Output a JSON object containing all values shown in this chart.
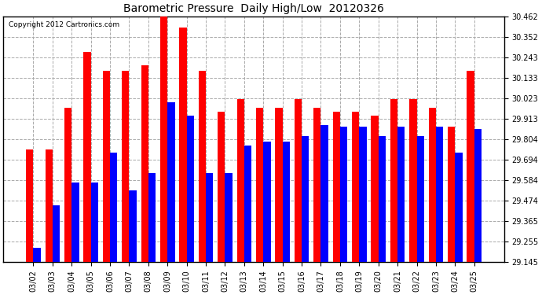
{
  "title": "Barometric Pressure  Daily High/Low  20120326",
  "copyright": "Copyright 2012 Cartronics.com",
  "dates": [
    "03/02",
    "03/03",
    "03/04",
    "03/05",
    "03/06",
    "03/07",
    "03/08",
    "03/09",
    "03/10",
    "03/11",
    "03/12",
    "03/13",
    "03/14",
    "03/15",
    "03/16",
    "03/17",
    "03/18",
    "03/19",
    "03/20",
    "03/21",
    "03/22",
    "03/23",
    "03/24",
    "03/25"
  ],
  "highs": [
    29.75,
    29.75,
    29.97,
    30.27,
    30.17,
    30.17,
    30.2,
    30.46,
    30.4,
    30.17,
    29.95,
    30.02,
    29.97,
    29.97,
    30.02,
    29.97,
    29.95,
    29.95,
    29.93,
    30.02,
    30.02,
    29.97,
    29.87,
    30.17
  ],
  "lows": [
    29.22,
    29.45,
    29.57,
    29.57,
    29.73,
    29.53,
    29.62,
    30.0,
    29.93,
    29.62,
    29.62,
    29.77,
    29.79,
    29.79,
    29.82,
    29.88,
    29.87,
    29.87,
    29.82,
    29.87,
    29.82,
    29.87,
    29.73,
    29.86
  ],
  "high_color": "#ff0000",
  "low_color": "#0000ff",
  "bg_color": "#ffffff",
  "plot_bg_color": "#ffffff",
  "grid_color": "#aaaaaa",
  "title_color": "#000000",
  "ymin": 29.145,
  "ymax": 30.462,
  "yticks": [
    29.145,
    29.255,
    29.365,
    29.474,
    29.584,
    29.694,
    29.804,
    29.913,
    30.023,
    30.133,
    30.243,
    30.352,
    30.462
  ]
}
